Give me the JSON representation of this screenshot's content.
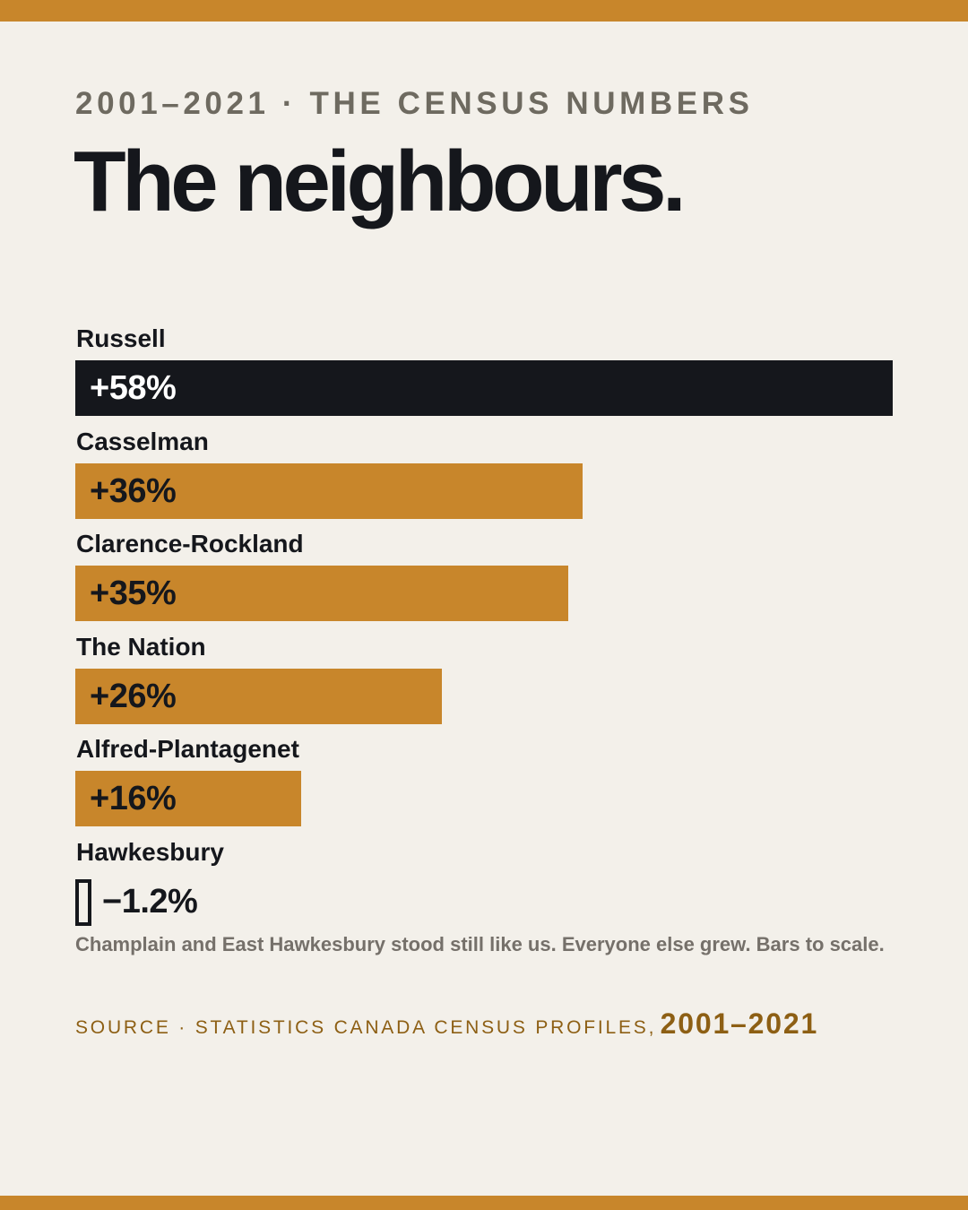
{
  "header": {
    "kicker": "2001–2021 · THE CENSUS NUMBERS",
    "title": "The neighbours."
  },
  "chart_data": {
    "type": "bar",
    "orientation": "horizontal",
    "categories": [
      "Russell",
      "Casselman",
      "Clarence-Rockland",
      "The Nation",
      "Alfred-Plantagenet",
      "Hawkesbury"
    ],
    "values": [
      58,
      36,
      35,
      26,
      16,
      -1.2
    ],
    "value_labels": [
      "+58%",
      "+36%",
      "+35%",
      "+26%",
      "+16%",
      "−1.2%"
    ],
    "unit": "%",
    "highlight": "Russell",
    "colors": {
      "highlight": "#15171c",
      "default": "#c8862b",
      "negative_outline": "#15171c"
    },
    "grid": false,
    "legend": "none"
  },
  "footer": {
    "note": "Champlain and East Hawkesbury stood still like us. Everyone else grew. Bars to scale.",
    "source_prefix": "SOURCE · STATISTICS CANADA CENSUS PROFILES,",
    "source_years": "2001–2021"
  },
  "colors": {
    "background": "#f3f0ea",
    "accent": "#c8862b",
    "ink": "#15171c"
  }
}
